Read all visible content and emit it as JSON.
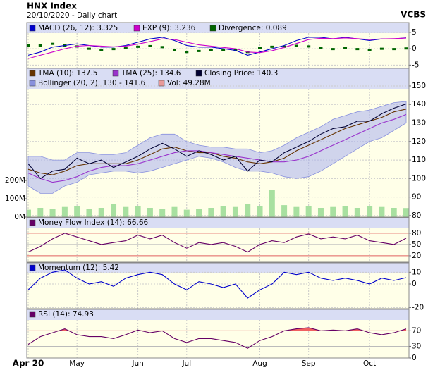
{
  "header": {
    "title": "HNX Index",
    "subtitle": "20/10/2020 - Daily chart",
    "brand": "VCBS"
  },
  "chart_data": [
    {
      "type": "line",
      "ylim": [
        -6,
        8
      ],
      "yticks": [
        5,
        0,
        -5
      ],
      "grid": true,
      "series": [
        {
          "name": "MACD (26, 12): 3.325",
          "color": "#0000cc",
          "values": [
            -2,
            -1,
            0.5,
            1,
            1.5,
            1,
            0.5,
            0.5,
            1,
            2,
            3,
            3.5,
            2.5,
            1,
            0.5,
            0.5,
            0,
            -0.5,
            -2,
            -1,
            0,
            1,
            2.5,
            3.5,
            3.5,
            3,
            3.5,
            3,
            2.5,
            3,
            3,
            3.325
          ]
        },
        {
          "name": "EXP (9): 3.236",
          "color": "#cc00cc",
          "values": [
            -3,
            -2,
            -1,
            0,
            0.8,
            1,
            0.8,
            0.6,
            0.8,
            1.4,
            2.2,
            3,
            2.8,
            2,
            1.2,
            0.8,
            0.4,
            0,
            -1,
            -1.2,
            -0.6,
            0.4,
            1.6,
            2.8,
            3.2,
            3.1,
            3.3,
            3.1,
            2.8,
            3,
            3.1,
            3.236
          ]
        },
        {
          "name": "Divergence: 0.089",
          "color": "#006600",
          "style": "dots",
          "values": [
            1,
            1,
            1.5,
            1,
            0.7,
            0,
            -0.3,
            -0.1,
            0.2,
            0.6,
            0.8,
            0.5,
            -0.3,
            -1,
            -0.7,
            -0.3,
            -0.4,
            -0.5,
            -1,
            0.2,
            0.6,
            0.6,
            0.9,
            0.7,
            0.3,
            -0.1,
            0.2,
            -0.1,
            -0.3,
            0,
            -0.1,
            0.089
          ]
        }
      ]
    },
    {
      "type": "line",
      "ylim": [
        79.2,
        159.5
      ],
      "yticks": [
        150,
        140,
        130,
        120,
        110,
        100,
        90,
        80
      ],
      "grid": true,
      "y2lim": [
        0,
        812
      ],
      "y2ticks": [
        {
          "value": 200,
          "label": "200M"
        },
        {
          "value": 100,
          "label": "100M"
        },
        {
          "value": 0,
          "label": "0M"
        }
      ],
      "series": [
        {
          "name": "TMA (10): 137.5",
          "color": "#663300",
          "values": [
            105,
            103,
            102,
            104,
            107,
            108,
            108,
            108,
            108,
            110,
            113,
            116,
            117,
            115,
            114,
            114,
            112,
            111,
            109,
            108,
            109,
            111,
            115,
            118,
            121,
            124,
            127,
            129,
            131,
            133,
            136,
            137.5
          ]
        },
        {
          "name": "TMA (25): 134.6",
          "color": "#9933cc",
          "values": [
            103,
            100,
            98,
            99,
            101,
            104,
            106,
            107,
            107,
            108,
            110,
            112,
            114,
            115,
            115,
            114,
            113,
            112,
            111,
            110,
            109,
            109,
            110,
            112,
            115,
            118,
            121,
            124,
            127,
            130,
            132,
            134.6
          ]
        },
        {
          "name": "Closing Price: 140.3",
          "color": "#000033",
          "values": [
            108,
            100,
            104,
            105,
            111,
            108,
            110,
            106,
            109,
            112,
            116,
            119,
            116,
            112,
            115,
            113,
            110,
            112,
            104,
            110,
            109,
            114,
            117,
            120,
            124,
            127,
            128,
            131,
            131,
            135,
            138,
            140.3
          ]
        },
        {
          "name": "Bollinger (20, 2): 130 - 141.6",
          "color": "#aab0ee",
          "style": "band",
          "upper": [
            112,
            112,
            110,
            110,
            114,
            114,
            113,
            113,
            114,
            118,
            122,
            124,
            124,
            120,
            118,
            117,
            117,
            116,
            116,
            114,
            115,
            118,
            122,
            125,
            128,
            132,
            134,
            136,
            137,
            139,
            141,
            141.6
          ],
          "lower": [
            96,
            92,
            92,
            96,
            98,
            102,
            103,
            104,
            104,
            103,
            104,
            106,
            108,
            110,
            112,
            111,
            109,
            106,
            104,
            104,
            103,
            101,
            100,
            101,
            104,
            108,
            112,
            116,
            120,
            122,
            126,
            130
          ]
        },
        {
          "name": "Vol: 49.28M",
          "color": "#a8e0a0",
          "style": "bar",
          "axis": "y2",
          "values": [
            40,
            50,
            45,
            55,
            60,
            45,
            50,
            70,
            55,
            60,
            50,
            45,
            55,
            40,
            45,
            50,
            60,
            55,
            70,
            60,
            150,
            65,
            55,
            60,
            50,
            55,
            60,
            50,
            60,
            55,
            50,
            49.28
          ]
        }
      ]
    },
    {
      "type": "line",
      "ylim": [
        3,
        121
      ],
      "yticks": [
        80,
        50,
        20
      ],
      "grid": true,
      "tick_colors": [
        "#e06060",
        "#bbbbbb",
        "#e06060"
      ],
      "series": [
        {
          "name": "Money Flow Index (14): 66.66",
          "color": "#660066",
          "values": [
            30,
            45,
            65,
            80,
            70,
            60,
            50,
            55,
            60,
            75,
            65,
            75,
            55,
            40,
            55,
            50,
            55,
            45,
            30,
            50,
            60,
            55,
            70,
            78,
            65,
            70,
            65,
            75,
            60,
            55,
            50,
            66.66
          ]
        }
      ]
    },
    {
      "type": "line",
      "ylim": [
        -21,
        18
      ],
      "yticks": [
        10,
        0,
        -20
      ],
      "grid": true,
      "series": [
        {
          "name": "Momentum (12): 5.42",
          "color": "#0000cc",
          "values": [
            -5,
            5,
            10,
            12,
            5,
            0,
            2,
            -2,
            5,
            8,
            10,
            8,
            0,
            -5,
            2,
            0,
            -3,
            0,
            -12,
            -5,
            0,
            10,
            8,
            10,
            5,
            3,
            5,
            3,
            0,
            5,
            3,
            5.42
          ]
        }
      ]
    },
    {
      "type": "line",
      "ylim": [
        0,
        125
      ],
      "yticks": [
        70,
        30,
        0
      ],
      "grid": true,
      "tick_colors": [
        "#e06060",
        "#bbbbbb",
        "#bbbbbb"
      ],
      "fill_above": 70,
      "fill_color": "#f06060",
      "categories": [
        "Apr 20",
        null,
        null,
        null,
        "May",
        null,
        null,
        null,
        null,
        "Jun",
        null,
        null,
        null,
        "Jul",
        null,
        null,
        null,
        null,
        null,
        "Aug",
        null,
        null,
        null,
        "Sep",
        null,
        null,
        null,
        null,
        "Oct",
        null,
        null,
        null
      ],
      "series": [
        {
          "name": "RSI (14): 74.93",
          "color": "#660066",
          "values": [
            35,
            55,
            65,
            75,
            60,
            55,
            55,
            50,
            60,
            72,
            65,
            70,
            50,
            40,
            50,
            50,
            45,
            40,
            25,
            45,
            55,
            70,
            75,
            78,
            70,
            72,
            70,
            75,
            65,
            60,
            65,
            74.93
          ]
        }
      ]
    }
  ]
}
